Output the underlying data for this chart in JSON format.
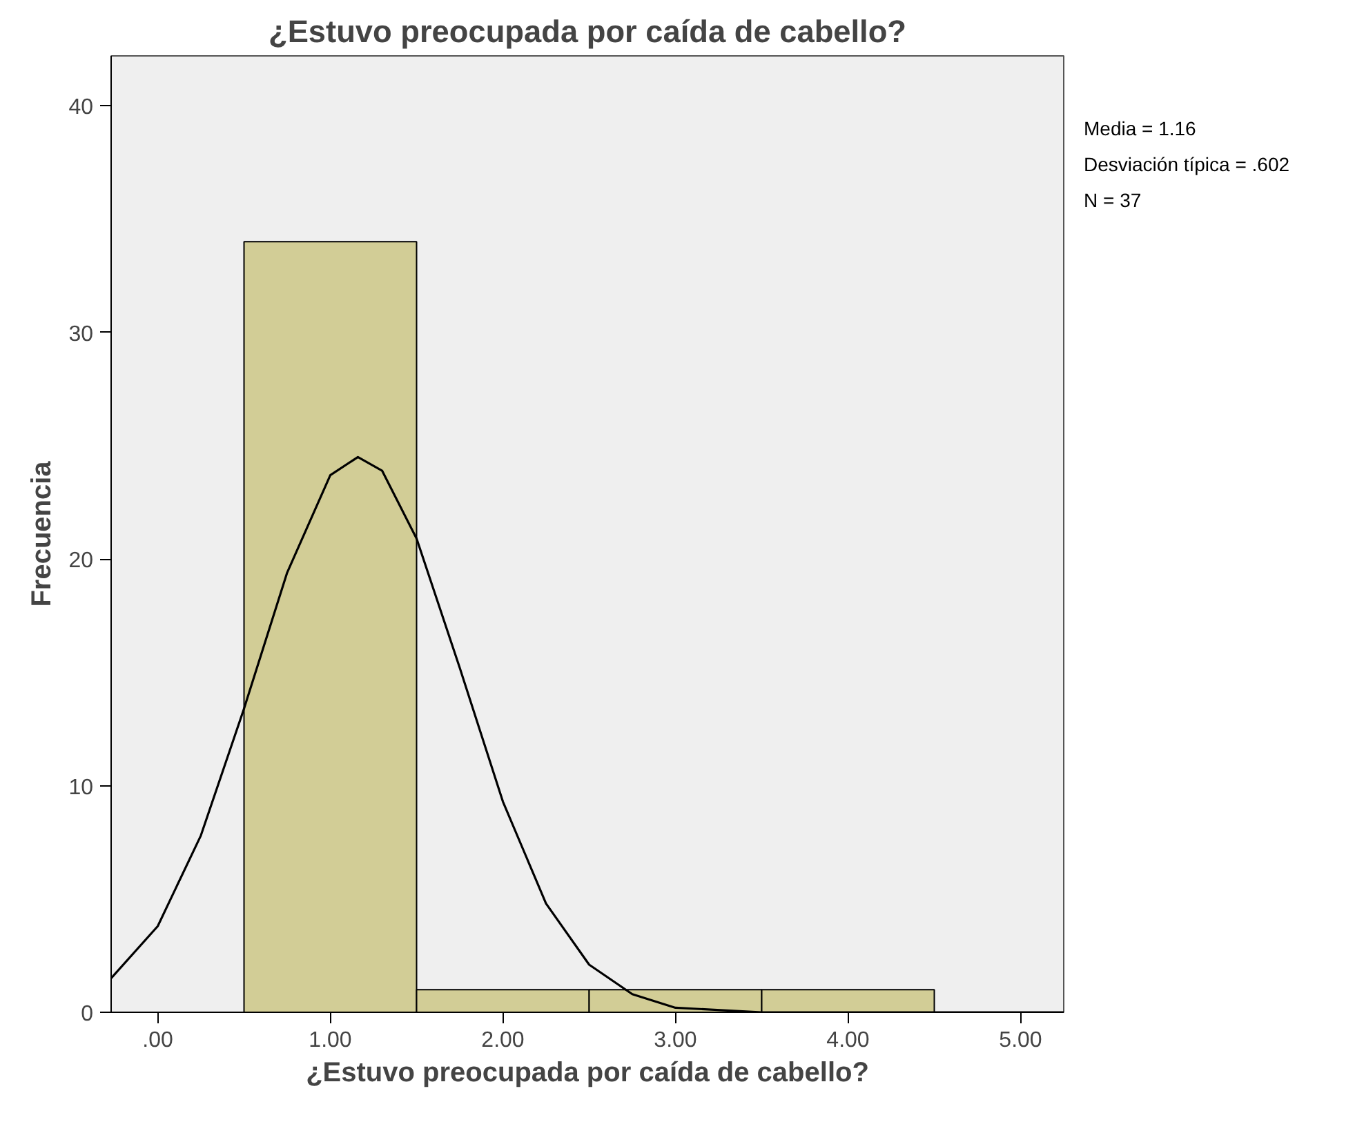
{
  "chart_data": {
    "type": "histogram",
    "title": "¿Estuvo preocupada por caída de cabello?",
    "xlabel": "¿Estuvo preocupada por caída de cabello?",
    "ylabel": "Frecuencia",
    "bins": [
      0.5,
      1.5,
      2.5,
      3.5,
      4.5
    ],
    "values": [
      34,
      1,
      1,
      1
    ],
    "color": "#d2cd96",
    "series": [
      {
        "type": "line",
        "color": "#000000",
        "x": [
          -0.27,
          0,
          0.25,
          0.5,
          0.75,
          1.0,
          1.16,
          1.3,
          1.5,
          1.75,
          2.0,
          2.25,
          2.5,
          2.75,
          3.0,
          3.5,
          4.0,
          5.25
        ],
        "values": [
          1.5,
          3.8,
          7.8,
          13.4,
          19.4,
          23.7,
          24.5,
          23.9,
          20.9,
          15.2,
          9.3,
          4.8,
          2.1,
          0.8,
          0.2,
          0,
          0,
          0
        ]
      }
    ],
    "xlim": [
      -0.27,
      5.25
    ],
    "ylim": [
      0,
      42.2
    ],
    "xticks": [
      {
        "value": 0,
        "label": ".00"
      },
      {
        "value": 1,
        "label": "1.00"
      },
      {
        "value": 2,
        "label": "2.00"
      },
      {
        "value": 3,
        "label": "3.00"
      },
      {
        "value": 4,
        "label": "4.00"
      },
      {
        "value": 5,
        "label": "5.00"
      }
    ],
    "yticks": [
      0,
      10,
      20,
      30,
      40
    ],
    "grid": false,
    "annotations": [
      "Media = 1.16",
      "Desviación típica = .602",
      "N = 37"
    ]
  }
}
